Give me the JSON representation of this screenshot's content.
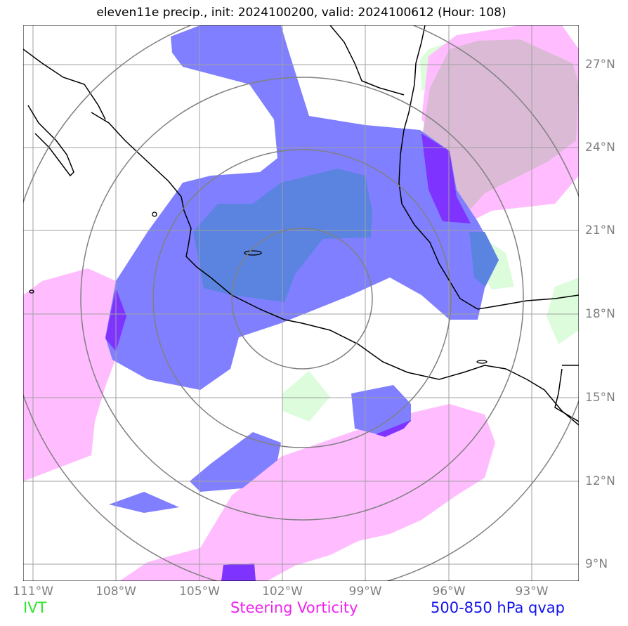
{
  "title": "eleven11e precip., init: 2024100200, valid: 2024100612 (Hour: 108)",
  "lon_labels": [
    "111°W",
    "108°W",
    "105°W",
    "102°W",
    "99°W",
    "96°W",
    "93°W"
  ],
  "lat_labels": [
    "27°N",
    "24°N",
    "21°N",
    "18°N",
    "15°N",
    "12°N",
    "9°N"
  ],
  "legend": {
    "ivt": "IVT",
    "vorticity": "Steering Vorticity",
    "qvap": "500-850 hPa qvap"
  },
  "colors": {
    "ivt": "#2ee62e",
    "vorticity": "#ee22ee",
    "qvap": "#1111ee",
    "ivt_fill": "#d9fcd9",
    "vorticity_fill": "#ffbcff",
    "qvap_fill": "#7f7fff",
    "qvap_strong": "#7f33ff",
    "gridline": "#a0a0a0",
    "range_ring": "#808080",
    "axis_label": "#7f7f7f"
  }
}
